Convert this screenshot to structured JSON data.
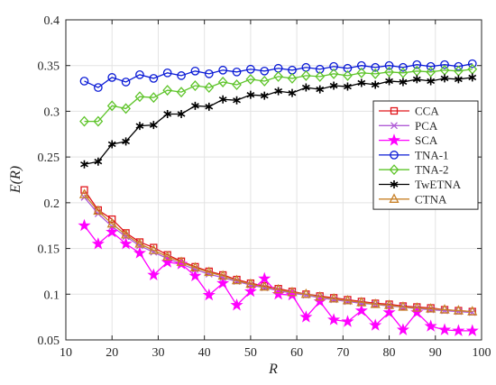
{
  "chart_data": {
    "type": "line",
    "title": "",
    "xlabel": "R",
    "ylabel": "E(R)",
    "xlim": [
      10,
      100
    ],
    "ylim": [
      0.05,
      0.4
    ],
    "xticks": [
      10,
      20,
      30,
      40,
      50,
      60,
      70,
      80,
      90,
      100
    ],
    "xtick_labels": [
      "10",
      "20",
      "30",
      "40",
      "50",
      "60",
      "70",
      "80",
      "90",
      "100"
    ],
    "yticks": [
      0.05,
      0.1,
      0.15,
      0.2,
      0.25,
      0.3,
      0.35,
      0.4
    ],
    "ytick_labels": [
      "0.05",
      "0.1",
      "0.15",
      "0.2",
      "0.25",
      "0.3",
      "0.35",
      "0.4"
    ],
    "grid": true,
    "legend_position": "right",
    "x": [
      14,
      17,
      20,
      23,
      26,
      29,
      32,
      35,
      38,
      41,
      44,
      47,
      50,
      53,
      56,
      59,
      62,
      65,
      68,
      71,
      74,
      77,
      80,
      83,
      86,
      89,
      92,
      95,
      98
    ],
    "series": [
      {
        "name": "CCA",
        "color": "#e0161b",
        "marker": "square",
        "values": [
          0.214,
          0.192,
          0.182,
          0.167,
          0.157,
          0.151,
          0.143,
          0.136,
          0.13,
          0.125,
          0.121,
          0.116,
          0.112,
          0.109,
          0.106,
          0.103,
          0.1,
          0.098,
          0.096,
          0.094,
          0.092,
          0.09,
          0.089,
          0.087,
          0.086,
          0.085,
          0.083,
          0.082,
          0.081
        ]
      },
      {
        "name": "PCA",
        "color": "#b05cd6",
        "marker": "x",
        "values": [
          0.206,
          0.188,
          0.174,
          0.163,
          0.153,
          0.146,
          0.139,
          0.133,
          0.127,
          0.122,
          0.118,
          0.114,
          0.11,
          0.107,
          0.104,
          0.101,
          0.099,
          0.096,
          0.094,
          0.092,
          0.09,
          0.089,
          0.087,
          0.086,
          0.084,
          0.083,
          0.082,
          0.081,
          0.08
        ]
      },
      {
        "name": "SCA",
        "color": "#ff00ff",
        "marker": "star",
        "values": [
          0.175,
          0.155,
          0.168,
          0.155,
          0.145,
          0.121,
          0.135,
          0.133,
          0.12,
          0.099,
          0.112,
          0.088,
          0.103,
          0.117,
          0.1,
          0.099,
          0.075,
          0.092,
          0.072,
          0.07,
          0.082,
          0.066,
          0.08,
          0.061,
          0.08,
          0.065,
          0.061,
          0.06,
          0.06
        ]
      },
      {
        "name": "TNA-1",
        "color": "#0b1bd6",
        "marker": "circle",
        "values": [
          0.333,
          0.326,
          0.337,
          0.332,
          0.34,
          0.336,
          0.342,
          0.339,
          0.344,
          0.341,
          0.345,
          0.343,
          0.346,
          0.344,
          0.347,
          0.345,
          0.348,
          0.346,
          0.349,
          0.347,
          0.35,
          0.348,
          0.35,
          0.348,
          0.351,
          0.349,
          0.351,
          0.349,
          0.352
        ]
      },
      {
        "name": "TNA-2",
        "color": "#5ec42a",
        "marker": "diamond",
        "values": [
          0.289,
          0.289,
          0.306,
          0.303,
          0.316,
          0.315,
          0.323,
          0.321,
          0.328,
          0.326,
          0.332,
          0.329,
          0.335,
          0.333,
          0.338,
          0.336,
          0.339,
          0.338,
          0.341,
          0.339,
          0.342,
          0.341,
          0.343,
          0.342,
          0.344,
          0.343,
          0.345,
          0.344,
          0.346
        ]
      },
      {
        "name": "TwETNA",
        "color": "#000000",
        "marker": "asterisk",
        "values": [
          0.242,
          0.245,
          0.264,
          0.267,
          0.284,
          0.285,
          0.297,
          0.297,
          0.306,
          0.305,
          0.313,
          0.312,
          0.318,
          0.317,
          0.322,
          0.32,
          0.326,
          0.324,
          0.328,
          0.327,
          0.331,
          0.329,
          0.333,
          0.332,
          0.335,
          0.333,
          0.336,
          0.335,
          0.337
        ]
      },
      {
        "name": "CTNA",
        "color": "#c8822a",
        "marker": "triangle",
        "values": [
          0.209,
          0.191,
          0.177,
          0.165,
          0.155,
          0.148,
          0.141,
          0.135,
          0.129,
          0.124,
          0.12,
          0.115,
          0.111,
          0.108,
          0.105,
          0.102,
          0.1,
          0.097,
          0.095,
          0.093,
          0.091,
          0.089,
          0.088,
          0.086,
          0.085,
          0.084,
          0.083,
          0.082,
          0.081
        ]
      }
    ]
  }
}
